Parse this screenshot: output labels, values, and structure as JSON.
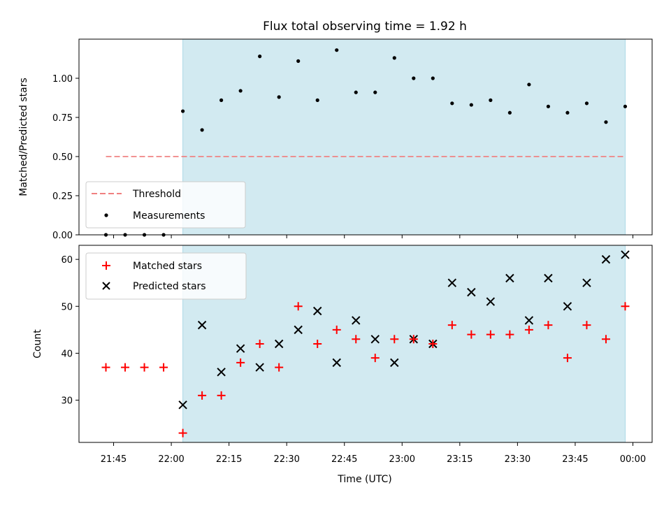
{
  "chart_data": {
    "type": "scatter",
    "title": "Flux total observing time = 1.92 h",
    "xlabel": "Time (UTC)",
    "colors": {
      "span": "#add8e6",
      "threshold": "#f08080",
      "measurements": "#000000",
      "matched": "#ff0000",
      "predicted": "#000000"
    },
    "x_ticks": [
      "21:45",
      "22:00",
      "22:15",
      "22:30",
      "22:45",
      "23:00",
      "23:15",
      "23:30",
      "23:45",
      "00:00"
    ],
    "x_range": [
      "21:36",
      "00:05"
    ],
    "observing_span": [
      "22:03",
      "23:58"
    ],
    "times": [
      "21:43",
      "21:48",
      "21:53",
      "21:58",
      "22:03",
      "22:08",
      "22:13",
      "22:18",
      "22:23",
      "22:28",
      "22:33",
      "22:38",
      "22:43",
      "22:48",
      "22:53",
      "22:58",
      "23:03",
      "23:08",
      "23:13",
      "23:18",
      "23:23",
      "23:28",
      "23:33",
      "23:38",
      "23:43",
      "23:48",
      "23:53",
      "23:58"
    ],
    "top": {
      "ylabel": "Matched/Predicted stars",
      "ylim": [
        0.0,
        1.25
      ],
      "y_ticks": [
        "0.00",
        "0.25",
        "0.50",
        "0.75",
        "1.00"
      ],
      "threshold": 0.5,
      "series": [
        {
          "name": "Threshold",
          "type": "line"
        },
        {
          "name": "Measurements",
          "type": "scatter",
          "values": [
            0.0,
            0.0,
            0.0,
            0.0,
            0.79,
            0.67,
            0.86,
            0.92,
            1.14,
            0.88,
            1.11,
            0.86,
            1.18,
            0.91,
            0.91,
            1.13,
            1.0,
            1.0,
            0.84,
            0.83,
            0.86,
            0.78,
            0.96,
            0.82,
            0.78,
            0.84,
            0.72,
            0.82
          ]
        }
      ]
    },
    "bottom": {
      "ylabel": "Count",
      "ylim": [
        21,
        63
      ],
      "y_ticks": [
        "30",
        "40",
        "50",
        "60"
      ],
      "series": [
        {
          "name": "Matched stars",
          "marker": "+",
          "values": [
            37,
            37,
            37,
            37,
            23,
            31,
            31,
            38,
            42,
            37,
            50,
            42,
            45,
            43,
            39,
            43,
            43,
            42,
            46,
            44,
            44,
            44,
            45,
            46,
            39,
            46,
            43,
            50
          ]
        },
        {
          "name": "Predicted stars",
          "marker": "x",
          "values": [
            null,
            null,
            null,
            null,
            29,
            46,
            36,
            41,
            37,
            42,
            45,
            49,
            38,
            47,
            43,
            38,
            43,
            42,
            55,
            53,
            51,
            56,
            47,
            56,
            50,
            55,
            60,
            61
          ]
        }
      ]
    }
  }
}
